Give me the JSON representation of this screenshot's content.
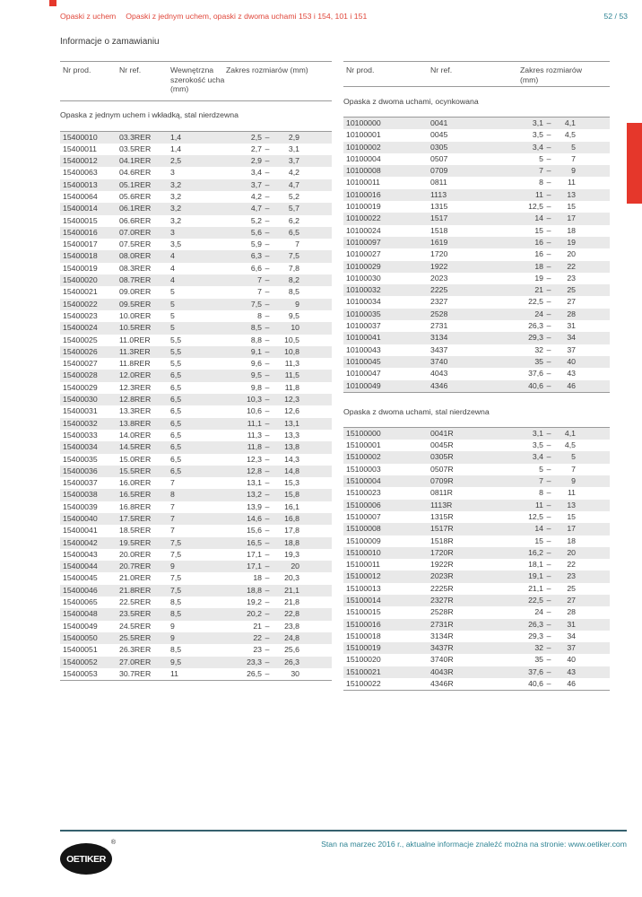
{
  "header": {
    "breadcrumb_section": "Opaski z uchem",
    "breadcrumb_page": "Opaski z jednym uchem, opaski z dwoma uchami 153 i 154, 101 i 151",
    "page_number": "52 / 53"
  },
  "page_title": "Informacje o zamawianiu",
  "range_separator": "–",
  "left_table": {
    "columns": [
      "Nr prod.",
      "Nr ref.",
      "Wewnętrzna szerokość ucha (mm)",
      "Zakres rozmiarów (mm)"
    ],
    "section_title": "Opaska z jednym uchem i wkładką, stal nierdzewna",
    "rows": [
      [
        "15400010",
        "03.3RER",
        "1,4",
        "2,5",
        "2,9"
      ],
      [
        "15400011",
        "03.5RER",
        "1,4",
        "2,7",
        "3,1"
      ],
      [
        "15400012",
        "04.1RER",
        "2,5",
        "2,9",
        "3,7"
      ],
      [
        "15400063",
        "04.6RER",
        "3",
        "3,4",
        "4,2"
      ],
      [
        "15400013",
        "05.1RER",
        "3,2",
        "3,7",
        "4,7"
      ],
      [
        "15400064",
        "05.6RER",
        "3,2",
        "4,2",
        "5,2"
      ],
      [
        "15400014",
        "06.1RER",
        "3,2",
        "4,7",
        "5,7"
      ],
      [
        "15400015",
        "06.6RER",
        "3,2",
        "5,2",
        "6,2"
      ],
      [
        "15400016",
        "07.0RER",
        "3",
        "5,6",
        "6,5"
      ],
      [
        "15400017",
        "07.5RER",
        "3,5",
        "5,9",
        "7"
      ],
      [
        "15400018",
        "08.0RER",
        "4",
        "6,3",
        "7,5"
      ],
      [
        "15400019",
        "08.3RER",
        "4",
        "6,6",
        "7,8"
      ],
      [
        "15400020",
        "08.7RER",
        "4",
        "7",
        "8,2"
      ],
      [
        "15400021",
        "09.0RER",
        "5",
        "7",
        "8,5"
      ],
      [
        "15400022",
        "09.5RER",
        "5",
        "7,5",
        "9"
      ],
      [
        "15400023",
        "10.0RER",
        "5",
        "8",
        "9,5"
      ],
      [
        "15400024",
        "10.5RER",
        "5",
        "8,5",
        "10"
      ],
      [
        "15400025",
        "11.0RER",
        "5,5",
        "8,8",
        "10,5"
      ],
      [
        "15400026",
        "11.3RER",
        "5,5",
        "9,1",
        "10,8"
      ],
      [
        "15400027",
        "11.8RER",
        "5,5",
        "9,6",
        "11,3"
      ],
      [
        "15400028",
        "12.0RER",
        "6,5",
        "9,5",
        "11,5"
      ],
      [
        "15400029",
        "12.3RER",
        "6,5",
        "9,8",
        "11,8"
      ],
      [
        "15400030",
        "12.8RER",
        "6,5",
        "10,3",
        "12,3"
      ],
      [
        "15400031",
        "13.3RER",
        "6,5",
        "10,6",
        "12,6"
      ],
      [
        "15400032",
        "13.8RER",
        "6,5",
        "11,1",
        "13,1"
      ],
      [
        "15400033",
        "14.0RER",
        "6,5",
        "11,3",
        "13,3"
      ],
      [
        "15400034",
        "14.5RER",
        "6,5",
        "11,8",
        "13,8"
      ],
      [
        "15400035",
        "15.0RER",
        "6,5",
        "12,3",
        "14,3"
      ],
      [
        "15400036",
        "15.5RER",
        "6,5",
        "12,8",
        "14,8"
      ],
      [
        "15400037",
        "16.0RER",
        "7",
        "13,1",
        "15,3"
      ],
      [
        "15400038",
        "16.5RER",
        "8",
        "13,2",
        "15,8"
      ],
      [
        "15400039",
        "16.8RER",
        "7",
        "13,9",
        "16,1"
      ],
      [
        "15400040",
        "17.5RER",
        "7",
        "14,6",
        "16,8"
      ],
      [
        "15400041",
        "18.5RER",
        "7",
        "15,6",
        "17,8"
      ],
      [
        "15400042",
        "19.5RER",
        "7,5",
        "16,5",
        "18,8"
      ],
      [
        "15400043",
        "20.0RER",
        "7,5",
        "17,1",
        "19,3"
      ],
      [
        "15400044",
        "20.7RER",
        "9",
        "17,1",
        "20"
      ],
      [
        "15400045",
        "21.0RER",
        "7,5",
        "18",
        "20,3"
      ],
      [
        "15400046",
        "21.8RER",
        "7,5",
        "18,8",
        "21,1"
      ],
      [
        "15400065",
        "22.5RER",
        "8,5",
        "19,2",
        "21,8"
      ],
      [
        "15400048",
        "23.5RER",
        "8,5",
        "20,2",
        "22,8"
      ],
      [
        "15400049",
        "24.5RER",
        "9",
        "21",
        "23,8"
      ],
      [
        "15400050",
        "25.5RER",
        "9",
        "22",
        "24,8"
      ],
      [
        "15400051",
        "26.3RER",
        "8,5",
        "23",
        "25,6"
      ],
      [
        "15400052",
        "27.0RER",
        "9,5",
        "23,3",
        "26,3"
      ],
      [
        "15400053",
        "30.7RER",
        "11",
        "26,5",
        "30"
      ]
    ]
  },
  "right_tables": {
    "columns": [
      "Nr prod.",
      "Nr ref.",
      "Zakres rozmiarów (mm)"
    ],
    "sections": [
      {
        "title": "Opaska z dwoma uchami, ocynkowana",
        "rows": [
          [
            "10100000",
            "0041",
            "3,1",
            "4,1"
          ],
          [
            "10100001",
            "0045",
            "3,5",
            "4,5"
          ],
          [
            "10100002",
            "0305",
            "3,4",
            "5"
          ],
          [
            "10100004",
            "0507",
            "5",
            "7"
          ],
          [
            "10100008",
            "0709",
            "7",
            "9"
          ],
          [
            "10100011",
            "0811",
            "8",
            "11"
          ],
          [
            "10100016",
            "1113",
            "11",
            "13"
          ],
          [
            "10100019",
            "1315",
            "12,5",
            "15"
          ],
          [
            "10100022",
            "1517",
            "14",
            "17"
          ],
          [
            "10100024",
            "1518",
            "15",
            "18"
          ],
          [
            "10100097",
            "1619",
            "16",
            "19"
          ],
          [
            "10100027",
            "1720",
            "16",
            "20"
          ],
          [
            "10100029",
            "1922",
            "18",
            "22"
          ],
          [
            "10100030",
            "2023",
            "19",
            "23"
          ],
          [
            "10100032",
            "2225",
            "21",
            "25"
          ],
          [
            "10100034",
            "2327",
            "22,5",
            "27"
          ],
          [
            "10100035",
            "2528",
            "24",
            "28"
          ],
          [
            "10100037",
            "2731",
            "26,3",
            "31"
          ],
          [
            "10100041",
            "3134",
            "29,3",
            "34"
          ],
          [
            "10100043",
            "3437",
            "32",
            "37"
          ],
          [
            "10100045",
            "3740",
            "35",
            "40"
          ],
          [
            "10100047",
            "4043",
            "37,6",
            "43"
          ],
          [
            "10100049",
            "4346",
            "40,6",
            "46"
          ]
        ]
      },
      {
        "title": "Opaska z dwoma uchami, stal nierdzewna",
        "rows": [
          [
            "15100000",
            "0041R",
            "3,1",
            "4,1"
          ],
          [
            "15100001",
            "0045R",
            "3,5",
            "4,5"
          ],
          [
            "15100002",
            "0305R",
            "3,4",
            "5"
          ],
          [
            "15100003",
            "0507R",
            "5",
            "7"
          ],
          [
            "15100004",
            "0709R",
            "7",
            "9"
          ],
          [
            "15100023",
            "0811R",
            "8",
            "11"
          ],
          [
            "15100006",
            "1113R",
            "11",
            "13"
          ],
          [
            "15100007",
            "1315R",
            "12,5",
            "15"
          ],
          [
            "15100008",
            "1517R",
            "14",
            "17"
          ],
          [
            "15100009",
            "1518R",
            "15",
            "18"
          ],
          [
            "15100010",
            "1720R",
            "16,2",
            "20"
          ],
          [
            "15100011",
            "1922R",
            "18,1",
            "22"
          ],
          [
            "15100012",
            "2023R",
            "19,1",
            "23"
          ],
          [
            "15100013",
            "2225R",
            "21,1",
            "25"
          ],
          [
            "15100014",
            "2327R",
            "22,5",
            "27"
          ],
          [
            "15100015",
            "2528R",
            "24",
            "28"
          ],
          [
            "15100016",
            "2731R",
            "26,3",
            "31"
          ],
          [
            "15100018",
            "3134R",
            "29,3",
            "34"
          ],
          [
            "15100019",
            "3437R",
            "32",
            "37"
          ],
          [
            "15100020",
            "3740R",
            "35",
            "40"
          ],
          [
            "15100021",
            "4043R",
            "37,6",
            "43"
          ],
          [
            "15100022",
            "4346R",
            "40,6",
            "46"
          ]
        ]
      }
    ]
  },
  "footer": {
    "note": "Stan na marzec 2016 r., aktualne informacje znaleźć można na stronie: www.oetiker.com",
    "logo_text": "OETIKER",
    "registered_mark": "®"
  },
  "colors": {
    "accent_red": "#e0463a",
    "tab_red": "#e5372b",
    "teal": "#2f8494",
    "stripe": "#e9e9e9",
    "footer_line": "#35606d"
  }
}
